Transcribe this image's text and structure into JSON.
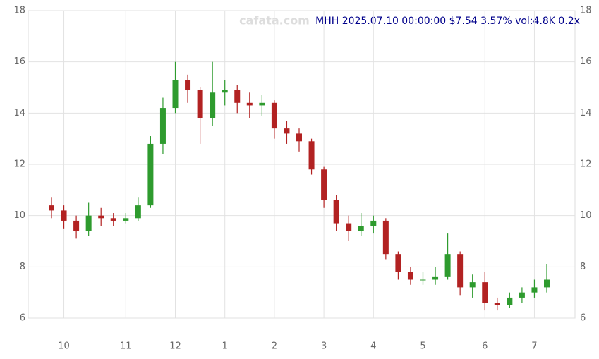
{
  "chart_data": {
    "type": "candlestick",
    "title": "MHH 2025.07.10 00:00:00 $7.54 3.57% vol:4.8K 0.2x",
    "watermark": "cafata.com",
    "categories": [
      null,
      "10",
      null,
      null,
      null,
      null,
      "11",
      null,
      null,
      null,
      "12",
      null,
      null,
      null,
      "1",
      null,
      null,
      null,
      "2",
      null,
      null,
      null,
      "3",
      null,
      null,
      null,
      "4",
      null,
      null,
      null,
      "5",
      null,
      null,
      null,
      null,
      "6",
      null,
      null,
      null,
      "7",
      null
    ],
    "open": [
      10.4,
      10.2,
      9.8,
      9.4,
      10.0,
      9.9,
      9.8,
      9.9,
      10.4,
      12.8,
      14.2,
      15.3,
      14.9,
      13.8,
      14.8,
      14.9,
      14.4,
      14.3,
      14.4,
      13.4,
      13.2,
      12.9,
      11.8,
      10.6,
      9.7,
      9.4,
      9.6,
      9.8,
      8.5,
      7.8,
      7.5,
      7.5,
      7.6,
      8.5,
      7.2,
      7.4,
      6.6,
      6.5,
      6.8,
      7.0,
      7.2
    ],
    "high": [
      10.7,
      10.4,
      10.0,
      10.5,
      10.3,
      10.1,
      10.1,
      10.7,
      13.1,
      14.6,
      16.0,
      15.5,
      15.0,
      16.0,
      15.3,
      15.1,
      14.8,
      14.7,
      14.5,
      13.7,
      13.4,
      13.0,
      11.9,
      10.8,
      10.0,
      10.1,
      10.0,
      9.9,
      8.6,
      8.0,
      7.8,
      8.0,
      9.3,
      8.6,
      7.7,
      7.8,
      6.8,
      7.0,
      7.2,
      7.5,
      8.1
    ],
    "low": [
      9.9,
      9.5,
      9.1,
      9.2,
      9.6,
      9.6,
      9.7,
      9.8,
      10.3,
      12.4,
      14.0,
      14.4,
      12.8,
      13.5,
      14.3,
      14.0,
      13.8,
      13.9,
      13.0,
      12.8,
      12.5,
      11.6,
      10.3,
      9.4,
      9.0,
      9.2,
      9.3,
      8.3,
      7.5,
      7.3,
      7.3,
      7.3,
      7.5,
      6.9,
      6.8,
      6.3,
      6.3,
      6.4,
      6.6,
      6.8,
      7.0
    ],
    "close": [
      10.2,
      9.8,
      9.4,
      10.0,
      9.9,
      9.8,
      9.9,
      10.4,
      12.8,
      14.2,
      15.3,
      14.9,
      13.8,
      14.8,
      14.9,
      14.4,
      14.3,
      14.4,
      13.4,
      13.2,
      12.9,
      11.8,
      10.6,
      9.7,
      9.4,
      9.6,
      9.8,
      8.5,
      7.8,
      7.5,
      7.5,
      7.6,
      8.5,
      7.2,
      7.4,
      6.6,
      6.5,
      6.8,
      7.0,
      7.2,
      7.5
    ],
    "up_color": "#2e9b2e",
    "down_color": "#b22222",
    "ylim": [
      6,
      18
    ],
    "yticks": [
      6,
      8,
      10,
      12,
      14,
      16,
      18
    ],
    "grid": true
  }
}
